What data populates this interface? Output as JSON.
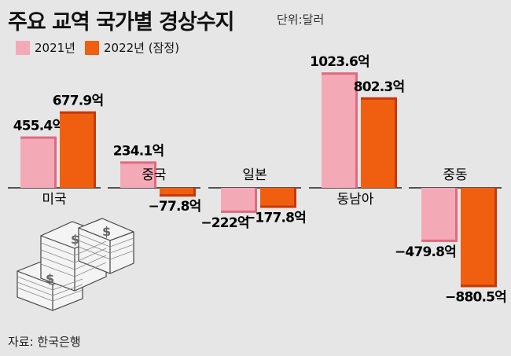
{
  "header": {
    "title": "주요 교역 국가별 경상수지",
    "unit": "단위:달러"
  },
  "legend": [
    {
      "label": "2021년",
      "color": "#f4a9b7"
    },
    {
      "label": "2022년 (잠정)",
      "color": "#f05f0f"
    }
  ],
  "source": "자료: 한국은행",
  "chart_data": {
    "type": "bar",
    "categories": [
      "미국",
      "중국",
      "일본",
      "동남아",
      "중동"
    ],
    "series": [
      {
        "name": "2021년",
        "values": [
          455.4,
          234.1,
          -222,
          1023.6,
          -479.8
        ],
        "labels": [
          "455.4억",
          "234.1억",
          "−222억",
          "1023.6억",
          "−479.8억"
        ]
      },
      {
        "name": "2022년 (잠정)",
        "values": [
          677.9,
          -77.8,
          -177.8,
          802.3,
          -880.5
        ],
        "labels": [
          "677.9억",
          "−77.8억",
          "−177.8억",
          "802.3억",
          "−880.5억"
        ]
      }
    ],
    "ylabel": "억 달러",
    "colors": {
      "s2021": "#f4a9b7",
      "s2021_edge": "#e06a80",
      "s2022": "#f05f0f",
      "s2022_edge": "#c7380a"
    }
  }
}
